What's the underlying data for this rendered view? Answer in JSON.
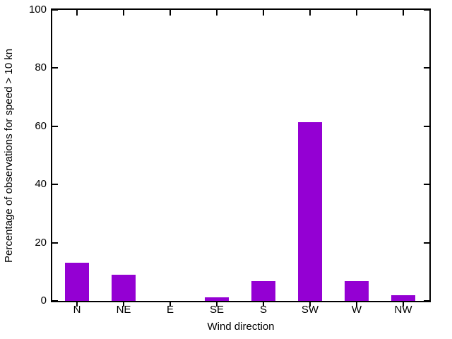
{
  "chart_data": {
    "type": "bar",
    "title": "",
    "xlabel": "Wind direction",
    "ylabel": "Percentage of observations for speed > 10 kn",
    "categories": [
      "N",
      "NE",
      "E",
      "SE",
      "S",
      "SW",
      "W",
      "NW"
    ],
    "values": [
      13.2,
      9.0,
      0.0,
      1.2,
      6.8,
      61.5,
      6.8,
      1.9
    ],
    "ylim": [
      0,
      100
    ],
    "yticks": [
      0,
      20,
      40,
      60,
      80,
      100
    ],
    "grid": false,
    "legend": "none",
    "bar_color": "#9400d3",
    "axis_color": "#000000",
    "background_color": "#ffffff",
    "text_color": "#000000"
  }
}
